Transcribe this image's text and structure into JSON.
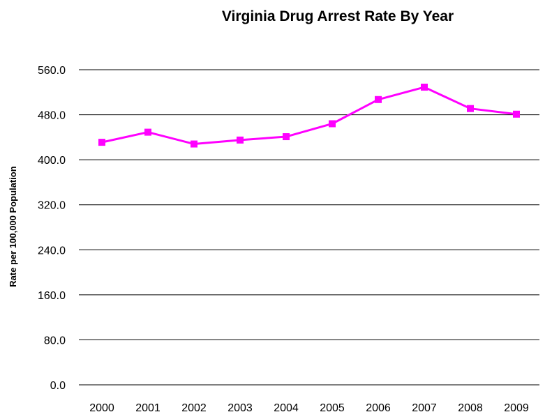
{
  "chart_data": {
    "type": "line",
    "title": "Virginia Drug Arrest Rate By Year",
    "xlabel": "",
    "ylabel": "Rate per 100,000 Population",
    "categories": [
      "2000",
      "2001",
      "2002",
      "2003",
      "2004",
      "2005",
      "2006",
      "2007",
      "2008",
      "2009"
    ],
    "series": [
      {
        "values": [
          431,
          449,
          428,
          435,
          441,
          464,
          507,
          529,
          491,
          481
        ],
        "color": "#ff00ff",
        "marker": "square"
      }
    ],
    "ylim": [
      0,
      560
    ],
    "yticks": [
      "0.0",
      "80.0",
      "160.0",
      "240.0",
      "320.0",
      "400.0",
      "480.0",
      "560.0"
    ],
    "grid": true,
    "legend": "none"
  }
}
